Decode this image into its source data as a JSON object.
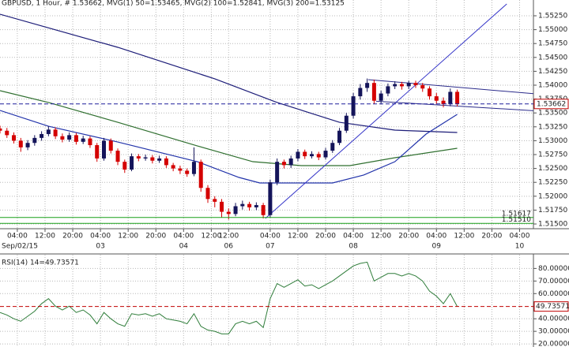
{
  "chart_data": [
    {
      "type": "candlestick",
      "title": "GBPUSD, 1 Hour, # 1.53662, MVG(1) 50=1.53465, MVG(2) 100=1.52841, MVG(3) 200=1.53125",
      "x": [
        0,
        2,
        4,
        6,
        8,
        10,
        12,
        14,
        16,
        18,
        20,
        22,
        24,
        26,
        28,
        30,
        32,
        34,
        36,
        38,
        40,
        42,
        44,
        46,
        48,
        50,
        52,
        54,
        56,
        58,
        60,
        62,
        64,
        66,
        68,
        70,
        72,
        74,
        76,
        78,
        80,
        82,
        84,
        86,
        88,
        90,
        92,
        94,
        96,
        98,
        100,
        102,
        104,
        106,
        108,
        110,
        112,
        114,
        116,
        118,
        120,
        122,
        124,
        126,
        128,
        130,
        132
      ],
      "open": [
        1.5322,
        1.5318,
        1.531,
        1.53,
        1.5288,
        1.5296,
        1.5305,
        1.5312,
        1.532,
        1.5308,
        1.5302,
        1.531,
        1.5298,
        1.5304,
        1.5292,
        1.5268,
        1.53,
        1.5282,
        1.5262,
        1.5248,
        1.5272,
        1.5268,
        1.527,
        1.5264,
        1.5268,
        1.5256,
        1.525,
        1.5246,
        1.524,
        1.5262,
        1.5215,
        1.5195,
        1.519,
        1.5172,
        1.5168,
        1.5182,
        1.5186,
        1.518,
        1.5184,
        1.5166,
        1.5225,
        1.5262,
        1.5256,
        1.5268,
        1.528,
        1.5272,
        1.5276,
        1.527,
        1.5282,
        1.5296,
        1.5318,
        1.5345,
        1.538,
        1.5395,
        1.5404,
        1.5372,
        1.5385,
        1.5398,
        1.5402,
        1.5398,
        1.5404,
        1.54,
        1.5394,
        1.538,
        1.5372,
        1.5366,
        1.5388
      ],
      "high": [
        1.5327,
        1.5323,
        1.5315,
        1.5305,
        1.5301,
        1.531,
        1.5317,
        1.5326,
        1.5324,
        1.5313,
        1.5315,
        1.5314,
        1.5309,
        1.5308,
        1.5296,
        1.5305,
        1.5304,
        1.5286,
        1.5266,
        1.5277,
        1.5276,
        1.5275,
        1.5274,
        1.5273,
        1.5272,
        1.526,
        1.5255,
        1.525,
        1.5288,
        1.5266,
        1.522,
        1.52,
        1.5195,
        1.5178,
        1.5188,
        1.5192,
        1.519,
        1.5189,
        1.5188,
        1.523,
        1.5268,
        1.5266,
        1.5273,
        1.5285,
        1.5284,
        1.5281,
        1.528,
        1.5287,
        1.5301,
        1.5323,
        1.535,
        1.5386,
        1.5402,
        1.5412,
        1.541,
        1.539,
        1.5403,
        1.5407,
        1.5406,
        1.5408,
        1.5408,
        1.5404,
        1.5398,
        1.5386,
        1.5378,
        1.5394,
        1.5392
      ],
      "low": [
        1.5313,
        1.5305,
        1.5295,
        1.528,
        1.5283,
        1.5291,
        1.53,
        1.5308,
        1.5303,
        1.5297,
        1.5298,
        1.5293,
        1.5294,
        1.5287,
        1.5262,
        1.5264,
        1.5277,
        1.5256,
        1.5242,
        1.5245,
        1.5263,
        1.5264,
        1.5259,
        1.526,
        1.5251,
        1.5245,
        1.524,
        1.5235,
        1.5236,
        1.5208,
        1.5188,
        1.518,
        1.5162,
        1.5158,
        1.5164,
        1.5176,
        1.5174,
        1.5175,
        1.516,
        1.5162,
        1.522,
        1.525,
        1.5251,
        1.5263,
        1.5267,
        1.5268,
        1.5265,
        1.5266,
        1.5278,
        1.5292,
        1.5314,
        1.534,
        1.5374,
        1.5388,
        1.5366,
        1.5366,
        1.538,
        1.5393,
        1.5392,
        1.5393,
        1.5395,
        1.5388,
        1.5374,
        1.5366,
        1.536,
        1.5362,
        1.5362
      ],
      "close": [
        1.5318,
        1.531,
        1.53,
        1.5288,
        1.5296,
        1.5305,
        1.5312,
        1.532,
        1.5308,
        1.5302,
        1.531,
        1.5298,
        1.5304,
        1.5292,
        1.5268,
        1.53,
        1.5282,
        1.5262,
        1.5248,
        1.5272,
        1.5268,
        1.527,
        1.5264,
        1.5268,
        1.5256,
        1.525,
        1.5246,
        1.524,
        1.5262,
        1.5215,
        1.5195,
        1.519,
        1.5172,
        1.5168,
        1.5182,
        1.5186,
        1.518,
        1.5184,
        1.5166,
        1.5225,
        1.5262,
        1.5256,
        1.5268,
        1.528,
        1.5272,
        1.5276,
        1.527,
        1.5282,
        1.5296,
        1.5318,
        1.5345,
        1.538,
        1.5395,
        1.5404,
        1.5372,
        1.5385,
        1.5398,
        1.5402,
        1.5398,
        1.5404,
        1.54,
        1.5394,
        1.538,
        1.5372,
        1.5366,
        1.5388,
        1.5366
      ],
      "up_color": "#14145a",
      "down_color": "#d40000",
      "xlim": [
        0,
        154
      ],
      "ylim": [
        1.51415,
        1.55534
      ],
      "xticks": [
        {
          "value": 5,
          "label": "04:00"
        },
        {
          "value": 13,
          "label": "12:00"
        },
        {
          "value": 21,
          "label": "20:00"
        },
        {
          "value": 29,
          "label": "04:00"
        },
        {
          "value": 37,
          "label": "12:00"
        },
        {
          "value": 45,
          "label": "20:00"
        },
        {
          "value": 53,
          "label": "04:00"
        },
        {
          "value": 61,
          "label": "12:00"
        },
        {
          "value": 66,
          "label": "12:00"
        },
        {
          "value": 78,
          "label": "04:00"
        },
        {
          "value": 86,
          "label": "12:00"
        },
        {
          "value": 94,
          "label": "20:00"
        },
        {
          "value": 102,
          "label": "04:00"
        },
        {
          "value": 110,
          "label": "12:00"
        },
        {
          "value": 118,
          "label": "20:00"
        },
        {
          "value": 126,
          "label": "04:00"
        },
        {
          "value": 134,
          "label": "12:00"
        },
        {
          "value": 142,
          "label": "20:00"
        },
        {
          "value": 150,
          "label": "04:00"
        }
      ],
      "xticks_dates": [
        {
          "value": 5,
          "label": "Sep/02/15"
        },
        {
          "value": 29,
          "label": "03"
        },
        {
          "value": 53,
          "label": "04"
        },
        {
          "value": 66,
          "label": "06"
        },
        {
          "value": 78,
          "label": "07"
        },
        {
          "value": 102,
          "label": "08"
        },
        {
          "value": 126,
          "label": "09"
        },
        {
          "value": 150,
          "label": "10"
        }
      ],
      "yticks": [
        {
          "value": 1.5525,
          "label": "1.55250"
        },
        {
          "value": 1.55,
          "label": "1.55000"
        },
        {
          "value": 1.5475,
          "label": "1.54750"
        },
        {
          "value": 1.545,
          "label": "1.54500"
        },
        {
          "value": 1.5425,
          "label": "1.54250"
        },
        {
          "value": 1.54,
          "label": "1.54000"
        },
        {
          "value": 1.5375,
          "label": "1.53750"
        },
        {
          "value": 1.535,
          "label": "1.53500"
        },
        {
          "value": 1.5325,
          "label": "1.53250"
        },
        {
          "value": 1.53,
          "label": "1.53000"
        },
        {
          "value": 1.5275,
          "label": "1.52750"
        },
        {
          "value": 1.525,
          "label": "1.52500"
        },
        {
          "value": 1.5225,
          "label": "1.52250"
        },
        {
          "value": 1.52,
          "label": "1.52000"
        },
        {
          "value": 1.5175,
          "label": "1.51750"
        },
        {
          "value": 1.515,
          "label": "1.51500"
        }
      ],
      "grid": true,
      "overlays": [
        {
          "color": "#1c1c78",
          "x": [
            0,
            34,
            62,
            80,
            98,
            114,
            132
          ],
          "values": [
            1.55278,
            1.54682,
            1.54114,
            1.53688,
            1.53332,
            1.5319,
            1.53148
          ]
        },
        {
          "color": "#2f6f2f",
          "x": [
            0,
            14,
            34,
            57,
            73,
            87,
            101,
            114,
            132
          ],
          "values": [
            1.53901,
            1.53688,
            1.53332,
            1.52906,
            1.52622,
            1.52551,
            1.52551,
            1.52693,
            1.52864
          ]
        },
        {
          "color": "#2233aa",
          "x": [
            0,
            14,
            34,
            57,
            69,
            75,
            87,
            96,
            105,
            114,
            123,
            132
          ],
          "values": [
            1.53545,
            1.53261,
            1.52977,
            1.52622,
            1.52338,
            1.52239,
            1.52239,
            1.52239,
            1.52381,
            1.52622,
            1.53119,
            1.53474
          ]
        }
      ],
      "trendlines": [
        {
          "color": "#3535c8",
          "x": [
            76.6,
            146.3
          ],
          "values": [
            1.516,
            1.55463
          ]
        },
        {
          "color": "#2a2a8a",
          "x": [
            106.3,
            154
          ],
          "values": [
            1.541,
            1.53847
          ]
        },
        {
          "color": "#2a2a8a",
          "x": [
            108.6,
            154
          ],
          "values": [
            1.53711,
            1.53541
          ]
        }
      ],
      "hlines": [
        {
          "value": 1.53662,
          "color": "#1f1f9c",
          "dashed": true,
          "box": "#c00000"
        },
        {
          "value": 1.51617,
          "color": "#18a018",
          "box": "#18a018"
        },
        {
          "value": 1.5151,
          "label": "1.51510",
          "color": "#18a018",
          "box": "#18a018"
        }
      ]
    },
    {
      "type": "line",
      "title": "RSI(14) 14=49.73571",
      "x": [
        0,
        2,
        4,
        6,
        8,
        10,
        12,
        14,
        16,
        18,
        20,
        22,
        24,
        26,
        28,
        30,
        32,
        34,
        36,
        38,
        40,
        42,
        44,
        46,
        48,
        50,
        52,
        54,
        56,
        58,
        60,
        62,
        64,
        66,
        68,
        70,
        72,
        74,
        76,
        78,
        80,
        82,
        84,
        86,
        88,
        90,
        92,
        94,
        96,
        98,
        100,
        102,
        104,
        106,
        108,
        110,
        112,
        114,
        116,
        118,
        120,
        122,
        124,
        126,
        128,
        130,
        132
      ],
      "values": [
        45,
        43,
        40,
        38,
        42,
        46,
        52,
        56,
        50,
        47,
        50,
        45,
        47,
        43,
        36,
        45,
        40,
        36,
        34,
        44,
        43,
        44,
        42,
        44,
        40,
        39,
        38,
        36,
        44,
        34,
        31,
        30,
        28,
        28,
        36,
        38,
        36,
        38,
        33,
        56,
        68,
        65,
        68,
        71,
        66,
        67,
        64,
        67,
        70,
        74,
        78,
        82,
        84,
        85,
        70,
        73,
        76,
        76,
        74,
        76,
        74,
        70,
        62,
        58,
        52,
        60,
        49.73571
      ],
      "color": "#2f7d3a",
      "level_color": "#c00000",
      "ylim": [
        18.8,
        90.9
      ],
      "yticks": [
        {
          "value": 80,
          "label": "80.00000"
        },
        {
          "value": 70,
          "label": "70.00000"
        },
        {
          "value": 60,
          "label": "60.00000"
        },
        {
          "value": 40,
          "label": "40.00000"
        },
        {
          "value": 30,
          "label": "30.00000"
        },
        {
          "value": 20,
          "label": "20.00000"
        }
      ],
      "grid": true
    }
  ]
}
